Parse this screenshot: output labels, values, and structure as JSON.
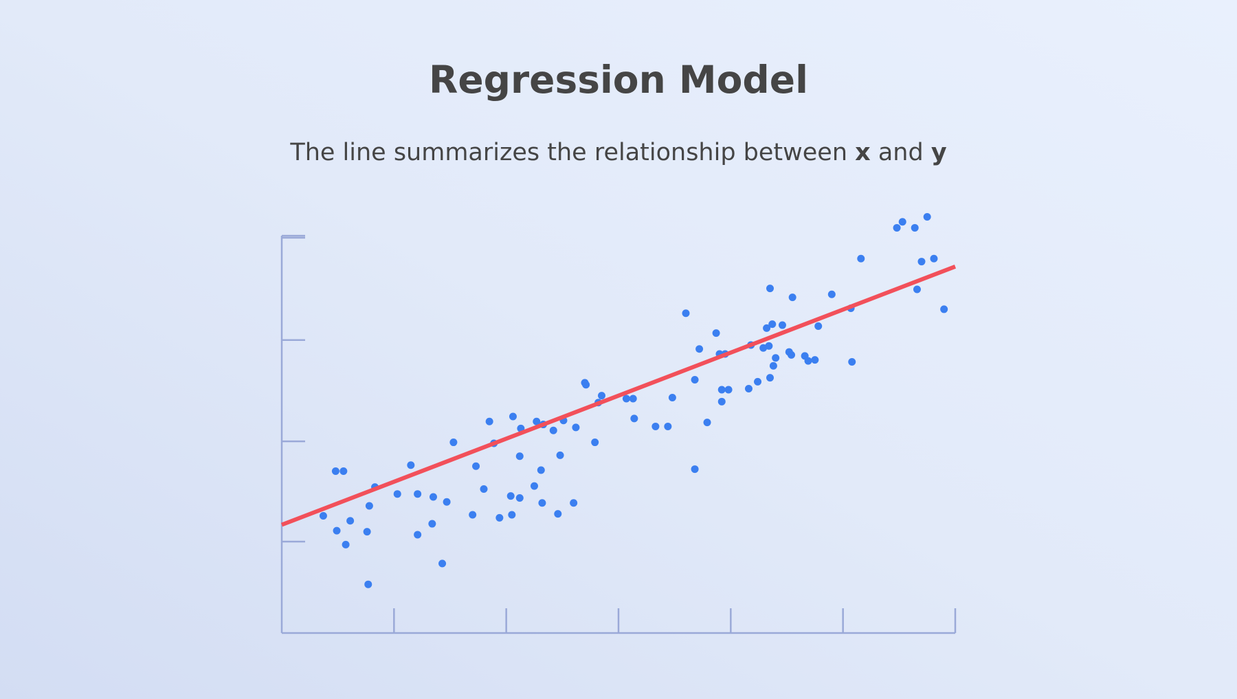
{
  "title": "Regression Model",
  "subtitle": {
    "text_before": "The line summarizes the relationship between ",
    "var_x": "x",
    "text_between": " and ",
    "var_y": "y"
  },
  "colors": {
    "axis": "#9aa9d8",
    "points": "#3b7ff0",
    "regression_line": "#f2505a",
    "text": "#454545"
  },
  "chart_data": {
    "type": "scatter",
    "title": "Regression Model",
    "xlabel": "",
    "ylabel": "",
    "xlim": [
      0,
      6
    ],
    "ylim": [
      0,
      4
    ],
    "grid": false,
    "x_ticks": [
      1,
      2,
      3,
      4,
      5,
      6
    ],
    "y_ticks": [
      0.92,
      1.93,
      2.95,
      3.98
    ],
    "show_tick_labels": false,
    "series": [
      {
        "points": [
          [
            0.37,
            1.18
          ],
          [
            0.48,
            1.63
          ],
          [
            0.55,
            1.63
          ],
          [
            0.57,
            0.89
          ],
          [
            0.61,
            1.13
          ],
          [
            0.49,
            1.03
          ],
          [
            0.76,
            1.02
          ],
          [
            0.78,
            1.28
          ],
          [
            0.83,
            1.47
          ],
          [
            0.77,
            0.49
          ],
          [
            1.03,
            1.4
          ],
          [
            1.15,
            1.69
          ],
          [
            1.21,
            1.4
          ],
          [
            1.21,
            0.99
          ],
          [
            1.34,
            1.1
          ],
          [
            1.35,
            1.37
          ],
          [
            1.43,
            0.7
          ],
          [
            1.47,
            1.32
          ],
          [
            1.53,
            1.92
          ],
          [
            1.7,
            1.19
          ],
          [
            1.73,
            1.68
          ],
          [
            1.8,
            1.45
          ],
          [
            1.85,
            2.13
          ],
          [
            1.89,
            1.91
          ],
          [
            1.94,
            1.16
          ],
          [
            2.04,
            1.38
          ],
          [
            2.05,
            1.19
          ],
          [
            2.06,
            2.18
          ],
          [
            2.12,
            1.36
          ],
          [
            2.13,
            2.06
          ],
          [
            2.12,
            1.78
          ],
          [
            2.25,
            1.48
          ],
          [
            2.27,
            2.13
          ],
          [
            2.31,
            1.64
          ],
          [
            2.32,
            1.31
          ],
          [
            2.33,
            2.1
          ],
          [
            2.42,
            2.04
          ],
          [
            2.46,
            1.2
          ],
          [
            2.48,
            1.79
          ],
          [
            2.51,
            2.14
          ],
          [
            2.6,
            1.31
          ],
          [
            2.62,
            2.07
          ],
          [
            2.7,
            2.52
          ],
          [
            2.71,
            2.5
          ],
          [
            2.79,
            1.92
          ],
          [
            2.82,
            2.32
          ],
          [
            2.85,
            2.39
          ],
          [
            3.07,
            2.36
          ],
          [
            3.13,
            2.36
          ],
          [
            3.14,
            2.16
          ],
          [
            3.33,
            2.08
          ],
          [
            3.44,
            2.08
          ],
          [
            3.48,
            2.37
          ],
          [
            3.6,
            3.22
          ],
          [
            3.68,
            2.55
          ],
          [
            3.68,
            1.65
          ],
          [
            3.72,
            2.86
          ],
          [
            3.79,
            2.12
          ],
          [
            3.87,
            3.02
          ],
          [
            3.9,
            2.81
          ],
          [
            3.92,
            2.45
          ],
          [
            3.92,
            2.33
          ],
          [
            3.95,
            2.81
          ],
          [
            3.98,
            2.45
          ],
          [
            4.16,
            2.46
          ],
          [
            4.18,
            2.9
          ],
          [
            4.24,
            2.53
          ],
          [
            4.29,
            2.87
          ],
          [
            4.32,
            3.07
          ],
          [
            4.34,
            2.89
          ],
          [
            4.35,
            3.47
          ],
          [
            4.35,
            2.57
          ],
          [
            4.37,
            3.11
          ],
          [
            4.38,
            2.69
          ],
          [
            4.4,
            2.77
          ],
          [
            4.46,
            3.1
          ],
          [
            4.52,
            2.83
          ],
          [
            4.54,
            2.8
          ],
          [
            4.55,
            3.38
          ],
          [
            4.66,
            2.79
          ],
          [
            4.69,
            2.74
          ],
          [
            4.75,
            2.75
          ],
          [
            4.78,
            3.09
          ],
          [
            4.9,
            3.41
          ],
          [
            5.07,
            3.27
          ],
          [
            5.08,
            2.73
          ],
          [
            5.16,
            3.77
          ],
          [
            5.48,
            4.08
          ],
          [
            5.53,
            4.14
          ],
          [
            5.64,
            4.08
          ],
          [
            5.7,
            3.74
          ],
          [
            5.75,
            4.19
          ],
          [
            5.66,
            3.46
          ],
          [
            5.81,
            3.77
          ],
          [
            5.9,
            3.26
          ]
        ]
      }
    ],
    "regression_line": {
      "x": [
        0,
        6
      ],
      "y": [
        1.09,
        3.69
      ]
    }
  }
}
